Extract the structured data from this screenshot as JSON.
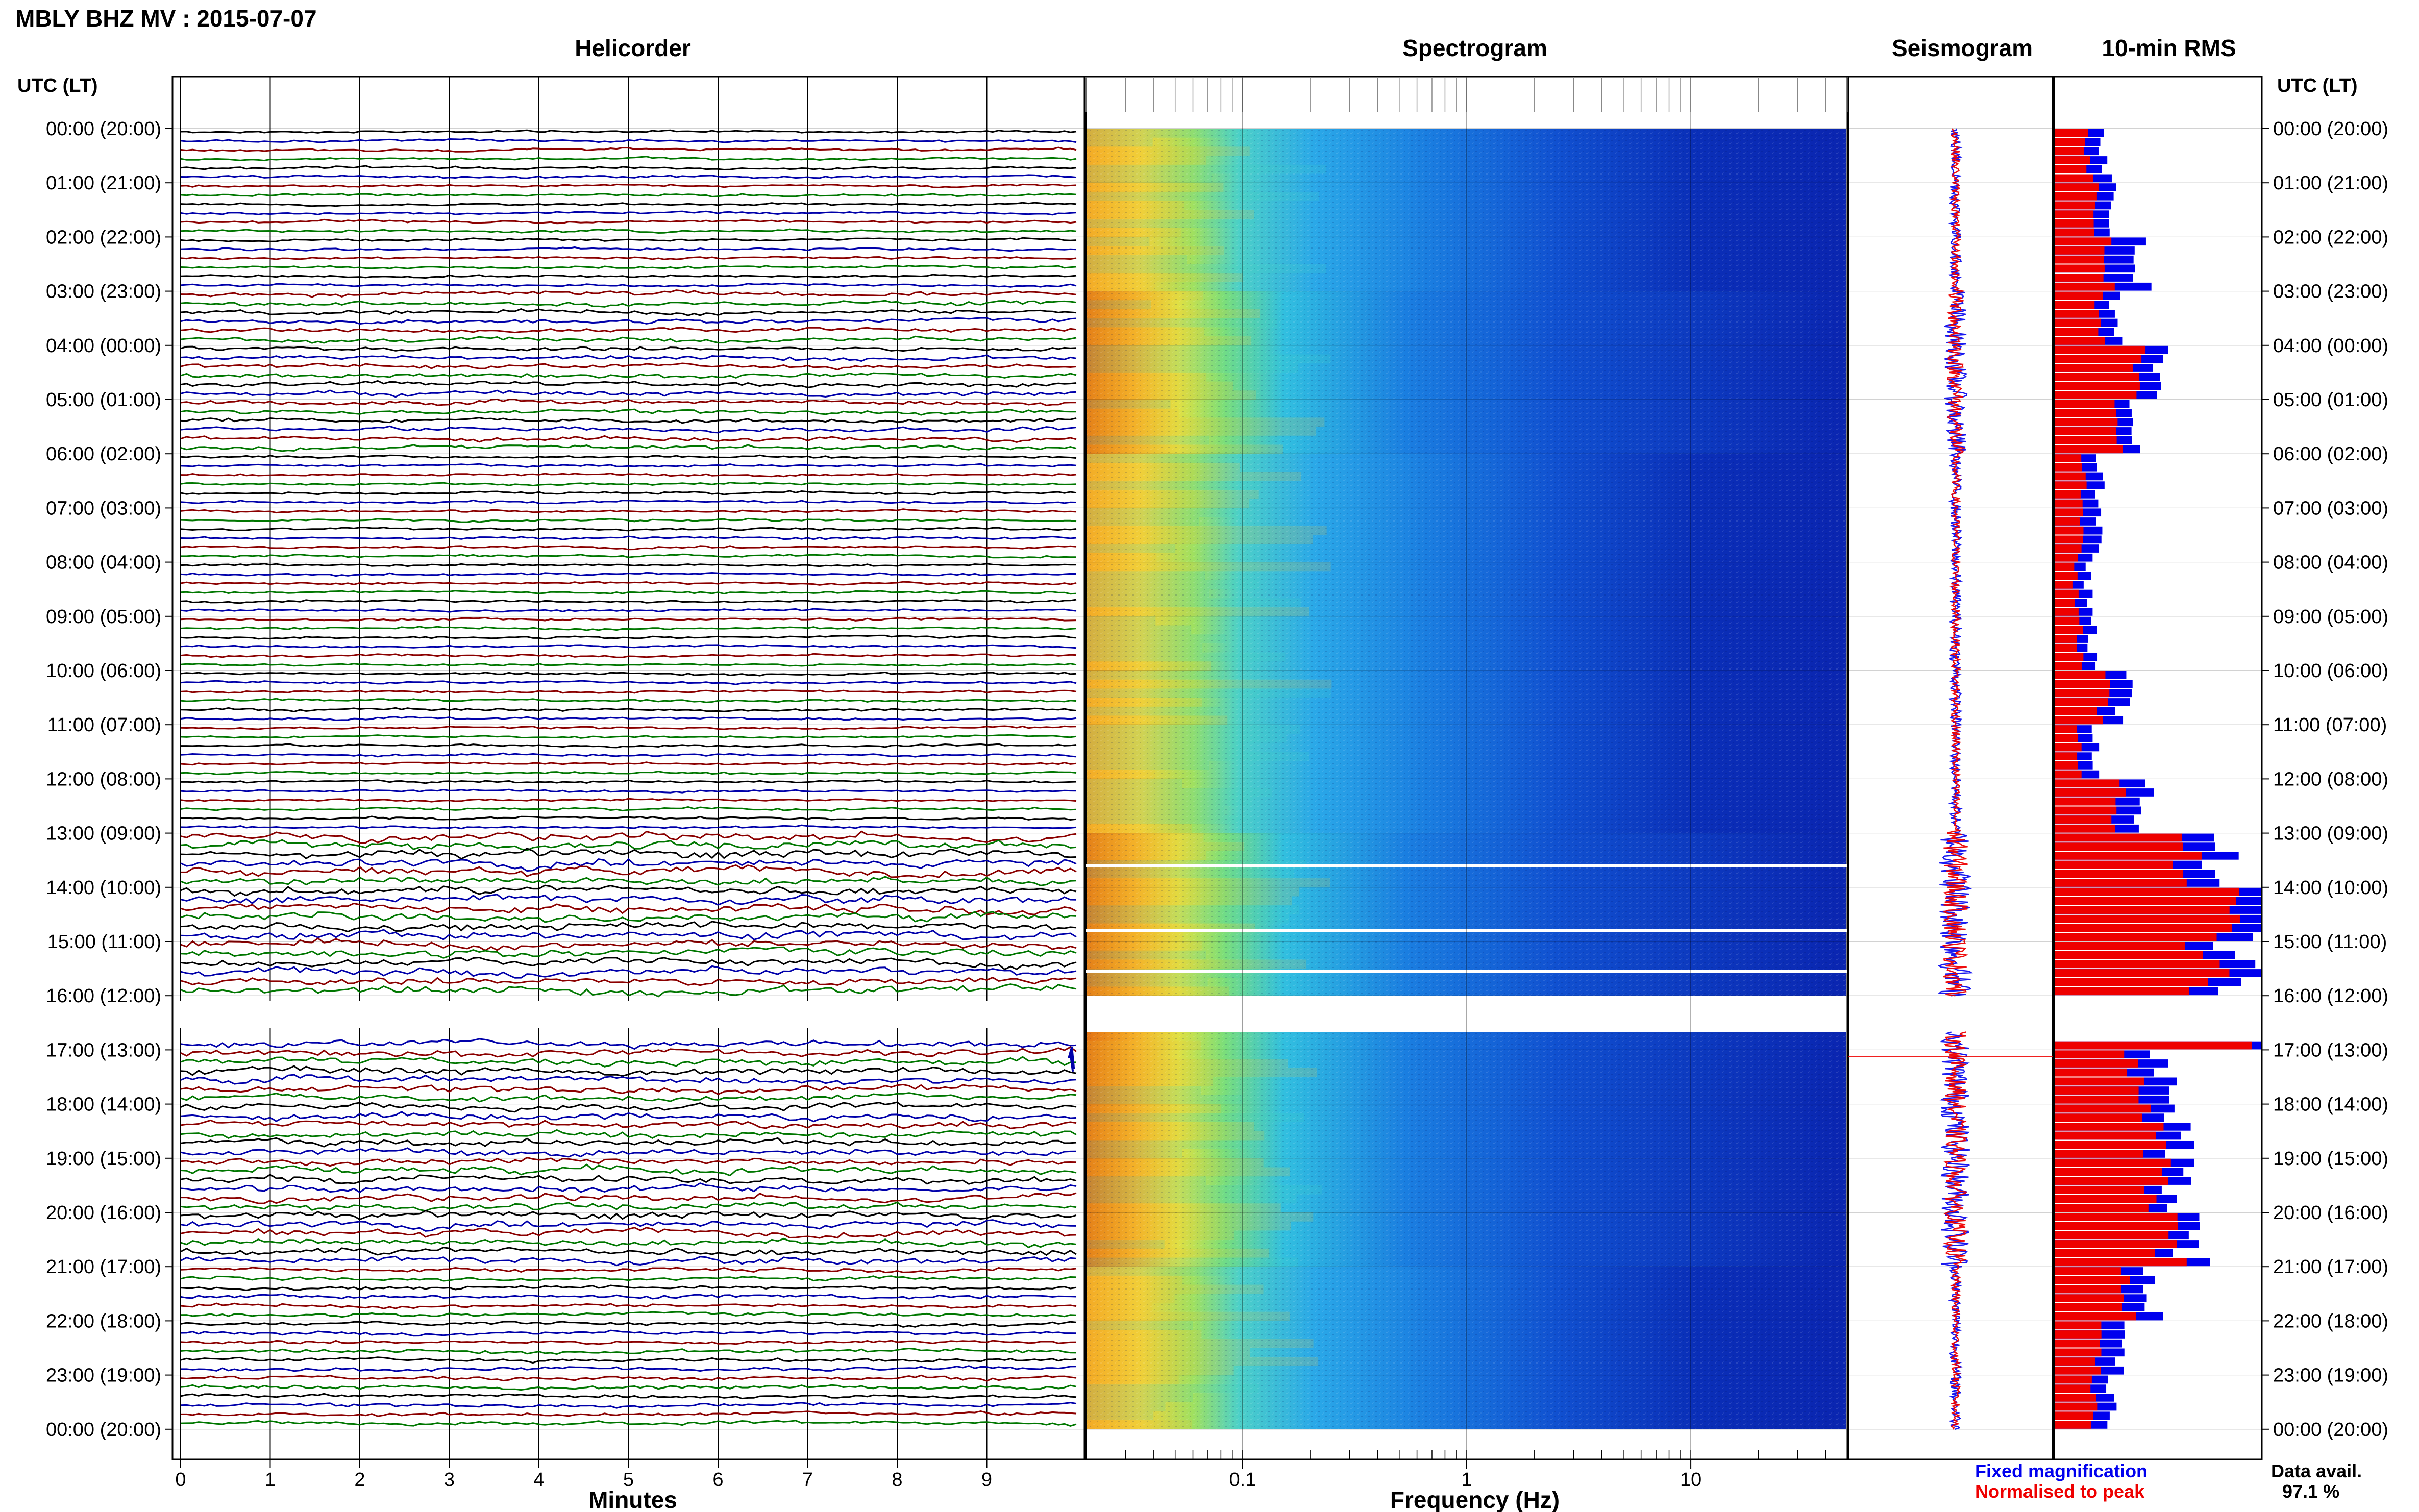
{
  "header": {
    "title": "MBLY BHZ MV : 2015-07-07",
    "utc_label_left": "UTC (LT)",
    "utc_label_right": "UTC (LT)"
  },
  "panels": {
    "helicorder": "Helicorder",
    "spectrogram": "Spectrogram",
    "seismogram": "Seismogram",
    "rms": "10-min RMS"
  },
  "time_labels": [
    "00:00 (20:00)",
    "01:00 (21:00)",
    "02:00 (22:00)",
    "03:00 (23:00)",
    "04:00 (00:00)",
    "05:00 (01:00)",
    "06:00 (02:00)",
    "07:00 (03:00)",
    "08:00 (04:00)",
    "09:00 (05:00)",
    "10:00 (06:00)",
    "11:00 (07:00)",
    "12:00 (08:00)",
    "13:00 (09:00)",
    "14:00 (10:00)",
    "15:00 (11:00)",
    "16:00 (12:00)",
    "17:00 (13:00)",
    "18:00 (14:00)",
    "19:00 (15:00)",
    "20:00 (16:00)",
    "21:00 (17:00)",
    "22:00 (18:00)",
    "23:00 (19:00)",
    "00:00 (20:00)"
  ],
  "legend": {
    "fixed": "Fixed magnification",
    "normalised": "Normalised to peak",
    "fixed_color": "#0000ee",
    "normalised_color": "#ee0000"
  },
  "availability": {
    "label": "Data avail.",
    "value": "97.1 %"
  },
  "chart_data": [
    {
      "type": "line",
      "panel": "helicorder",
      "xlabel": "Minutes",
      "xlim": [
        0,
        10
      ],
      "x_ticks": [
        "0",
        "1",
        "2",
        "3",
        "4",
        "5",
        "6",
        "7",
        "8",
        "9"
      ],
      "rows_per_hour": 6,
      "trace_colors": [
        "#000000",
        "#0000aa",
        "#8b0000",
        "#007700"
      ],
      "data_gap_hours": [
        16.0,
        16.67
      ],
      "grid": true
    },
    {
      "type": "heatmap",
      "panel": "spectrogram",
      "xlabel": "Frequency (Hz)",
      "x_scale": "log",
      "xlim": [
        0.02,
        50
      ],
      "x_ticks": [
        "0.1",
        "1",
        "10"
      ],
      "grid": true
    },
    {
      "type": "line",
      "panel": "seismogram",
      "series": [
        {
          "name": "Fixed magnification",
          "color": "#0000ee"
        },
        {
          "name": "Normalised to peak",
          "color": "#ee0000"
        }
      ],
      "data_gap_hours": [
        16.0,
        16.67
      ],
      "grid": true
    },
    {
      "type": "bar",
      "panel": "rms",
      "orientation": "horizontal",
      "interval_minutes": 10,
      "series": [
        {
          "name": "Fixed magnification",
          "color": "#0000ee"
        },
        {
          "name": "Normalised to peak",
          "color": "#ee0000"
        }
      ],
      "hourly_rms_fixed": [
        0.24,
        0.28,
        0.42,
        0.3,
        0.5,
        0.4,
        0.22,
        0.2,
        0.16,
        0.18,
        0.34,
        0.2,
        0.42,
        0.8,
        0.98,
        0.9,
        0.96,
        0.52,
        0.6,
        0.6,
        0.66,
        0.48,
        0.3,
        0.26
      ],
      "hourly_rms_normalised": [
        0.16,
        0.2,
        0.26,
        0.22,
        0.4,
        0.32,
        0.14,
        0.12,
        0.1,
        0.12,
        0.24,
        0.12,
        0.3,
        0.64,
        0.8,
        0.74,
        0.84,
        0.38,
        0.48,
        0.5,
        0.56,
        0.36,
        0.2,
        0.18
      ],
      "xlim": [
        0,
        1
      ],
      "grid": true
    }
  ]
}
